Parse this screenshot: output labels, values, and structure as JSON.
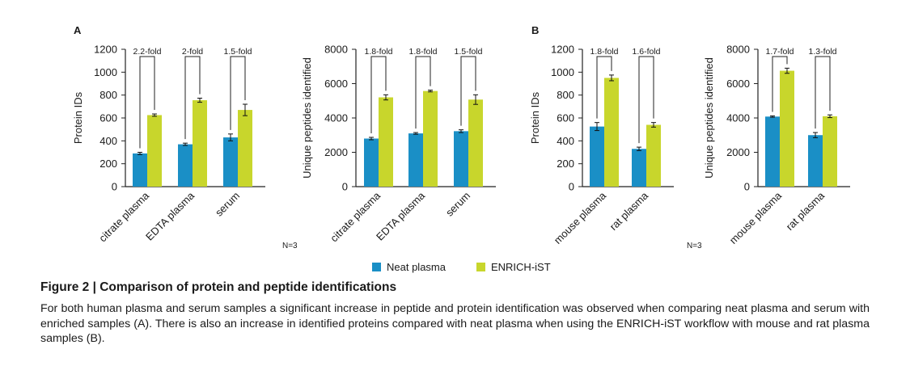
{
  "colors": {
    "neat": "#1a8fc6",
    "enrich": "#c8d62c",
    "axis": "#222222"
  },
  "panel_labels": {
    "a": "A",
    "b": "B"
  },
  "n_labels": {
    "a": "N=3",
    "b": "N=3"
  },
  "legend": {
    "neat": "Neat plasma",
    "enrich": "ENRICH-iST"
  },
  "figure": {
    "title": "Figure 2 | Comparison of protein and peptide identifications",
    "caption": "For both human plasma and serum samples a significant increase in peptide and protein identification was observed when comparing neat plasma and serum with enriched samples (A). There is also an increase in identified proteins compared with neat plasma when using the ENRICH-iST workflow with mouse and rat plasma samples (B)."
  },
  "chart_data": [
    {
      "type": "bar",
      "panel": "A",
      "ylabel": "Protein IDs",
      "ylim": [
        0,
        1200
      ],
      "yticks": [
        0,
        200,
        400,
        600,
        800,
        1000,
        1200
      ],
      "categories": [
        "citrate plasma",
        "EDTA plasma",
        "serum"
      ],
      "series": [
        {
          "name": "Neat plasma",
          "values": [
            290,
            370,
            430
          ],
          "errors": [
            10,
            10,
            30
          ]
        },
        {
          "name": "ENRICH-iST",
          "values": [
            625,
            755,
            670
          ],
          "errors": [
            10,
            18,
            50
          ]
        }
      ],
      "annotations": [
        "2.2-fold",
        "2-fold",
        "1.5-fold"
      ]
    },
    {
      "type": "bar",
      "panel": "A",
      "ylabel": "Unique peptides identified",
      "ylim": [
        0,
        8000
      ],
      "yticks": [
        0,
        2000,
        4000,
        6000,
        8000
      ],
      "categories": [
        "citrate plasma",
        "EDTA plasma",
        "serum"
      ],
      "series": [
        {
          "name": "Neat plasma",
          "values": [
            2800,
            3100,
            3230
          ],
          "errors": [
            70,
            50,
            80
          ]
        },
        {
          "name": "ENRICH-iST",
          "values": [
            5200,
            5570,
            5070
          ],
          "errors": [
            150,
            50,
            280
          ]
        }
      ],
      "annotations": [
        "1.8-fold",
        "1.8-fold",
        "1.5-fold"
      ]
    },
    {
      "type": "bar",
      "panel": "B",
      "ylabel": "Protein IDs",
      "ylim": [
        0,
        1200
      ],
      "yticks": [
        0,
        200,
        400,
        600,
        800,
        1000,
        1200
      ],
      "categories": [
        "mouse plasma",
        "rat plasma"
      ],
      "series": [
        {
          "name": "Neat plasma",
          "values": [
            525,
            330
          ],
          "errors": [
            35,
            15
          ]
        },
        {
          "name": "ENRICH-iST",
          "values": [
            950,
            540
          ],
          "errors": [
            25,
            20
          ]
        }
      ],
      "annotations": [
        "1.8-fold",
        "1.6-fold"
      ]
    },
    {
      "type": "bar",
      "panel": "B",
      "ylabel": "Unique peptides identified",
      "ylim": [
        0,
        8000
      ],
      "yticks": [
        0,
        2000,
        4000,
        6000,
        8000
      ],
      "categories": [
        "mouse plasma",
        "rat plasma"
      ],
      "series": [
        {
          "name": "Neat plasma",
          "values": [
            4080,
            3000
          ],
          "errors": [
            40,
            150
          ]
        },
        {
          "name": "ENRICH-iST",
          "values": [
            6750,
            4100
          ],
          "errors": [
            150,
            80
          ]
        }
      ],
      "annotations": [
        "1.7-fold",
        "1.3-fold"
      ]
    }
  ]
}
